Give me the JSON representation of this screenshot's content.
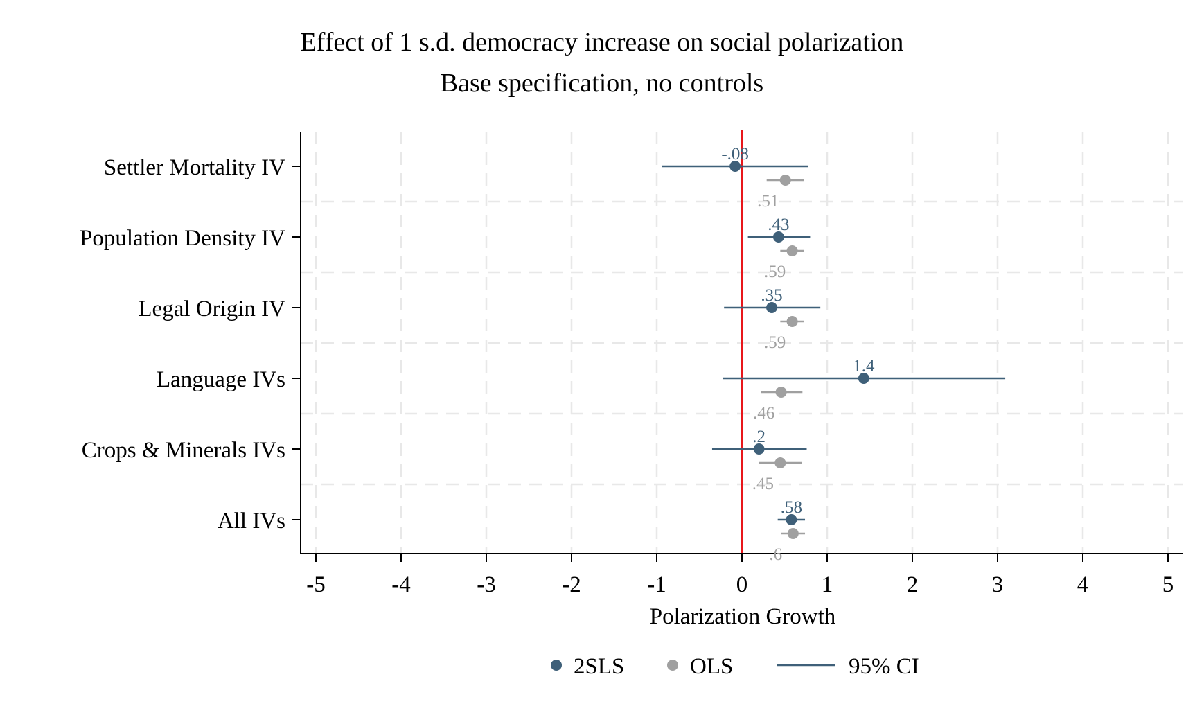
{
  "chart_data": {
    "type": "scatter",
    "title": "Effect of 1 s.d. democracy increase on social polarization",
    "subtitle": "Base specification, no controls",
    "xlabel": "Polarization Growth",
    "ylabel": "",
    "xlim": [
      -5,
      5
    ],
    "xticks": [
      -5,
      -4,
      -3,
      -2,
      -1,
      0,
      1,
      2,
      3,
      4,
      5
    ],
    "xtick_labels": [
      "-5",
      "-4",
      "-3",
      "-2",
      "-1",
      "0",
      "1",
      "2",
      "3",
      "4",
      "5"
    ],
    "reference_line": {
      "x": 0,
      "color": "#e8161b"
    },
    "grid": true,
    "legend_position": "bottom",
    "categories": [
      "Settler Mortality IV",
      "Population Density IV",
      "Legal Origin IV",
      "Language IVs",
      "Crops & Minerals IVs",
      "All IVs"
    ],
    "series": [
      {
        "name": "2SLS",
        "color": "#3f6079",
        "values": [
          -0.08,
          0.43,
          0.35,
          1.43,
          0.2,
          0.58
        ],
        "labels": [
          "-.08",
          ".43",
          ".35",
          "1.4",
          ".2",
          ".58"
        ],
        "ci_low": [
          -0.94,
          0.07,
          -0.21,
          -0.22,
          -0.35,
          0.42
        ],
        "ci_high": [
          0.78,
          0.8,
          0.92,
          3.09,
          0.76,
          0.74
        ]
      },
      {
        "name": "OLS",
        "color": "#a0a0a0",
        "values": [
          0.51,
          0.59,
          0.59,
          0.46,
          0.45,
          0.6
        ],
        "labels": [
          ".51",
          ".59",
          ".59",
          ".46",
          ".45",
          ".6"
        ],
        "ci_low": [
          0.29,
          0.45,
          0.45,
          0.22,
          0.2,
          0.46
        ],
        "ci_high": [
          0.73,
          0.73,
          0.73,
          0.71,
          0.7,
          0.74
        ]
      }
    ],
    "legend": [
      {
        "name": "2SLS",
        "symbol": "dot",
        "color": "#3f6079"
      },
      {
        "name": "OLS",
        "symbol": "dot",
        "color": "#a0a0a0"
      },
      {
        "name": "95% CI",
        "symbol": "line",
        "color": "#3f6079"
      }
    ]
  }
}
